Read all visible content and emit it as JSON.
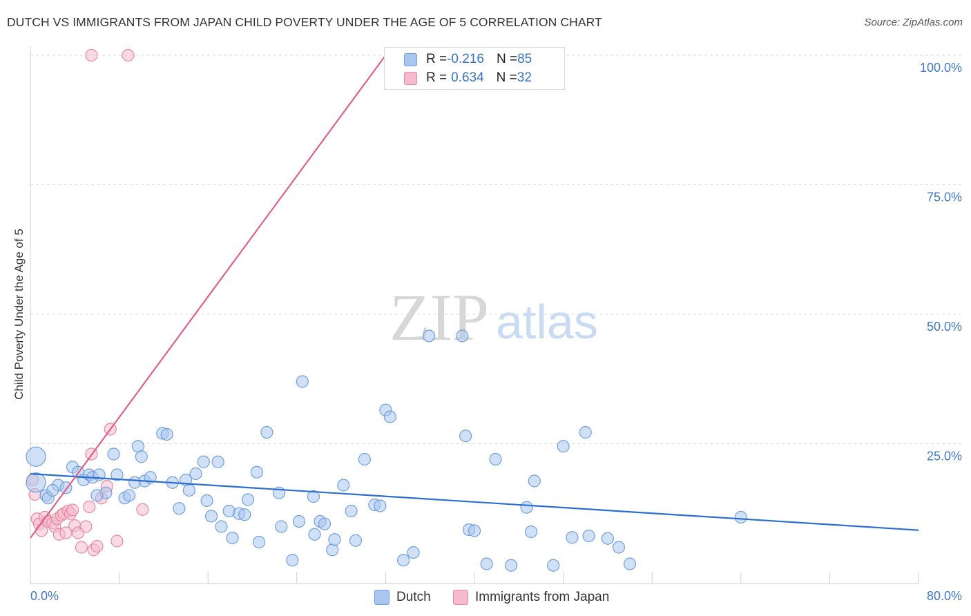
{
  "title": "DUTCH VS IMMIGRANTS FROM JAPAN CHILD POVERTY UNDER THE AGE OF 5 CORRELATION CHART",
  "source": "Source: ZipAtlas.com",
  "watermark": {
    "zip": "ZIP",
    "atlas": "atlas"
  },
  "legend_top": {
    "rows": [
      {
        "r_label": "R = ",
        "r_value": "-0.216",
        "n_label": "N = ",
        "n_value": "85"
      },
      {
        "r_label": "R = ",
        "r_value": "0.634",
        "n_label": "N = ",
        "n_value": "32"
      }
    ]
  },
  "legend_bottom": {
    "dutch": "Dutch",
    "japan": "Immigrants from Japan"
  },
  "colors": {
    "dutch_fill": "#a9c6ee",
    "dutch_stroke": "#6f9fdc",
    "dutch_line": "#2a6fcf",
    "japan_fill": "#f6bccd",
    "japan_stroke": "#e8879f",
    "japan_line": "#e0608a",
    "tick_label": "#3f78c9"
  },
  "chart_data": {
    "type": "scatter",
    "title": "DUTCH VS IMMIGRANTS FROM JAPAN CHILD POVERTY UNDER THE AGE OF 5 CORRELATION CHART",
    "xlabel": "",
    "ylabel": "Child Poverty Under the Age of 5",
    "xlim": [
      0,
      80
    ],
    "ylim": [
      0,
      100
    ],
    "x_tick_labels": [
      "0.0%",
      "80.0%"
    ],
    "y_ticks": [
      25,
      50,
      75,
      100
    ],
    "y_tick_labels": [
      "25.0%",
      "50.0%",
      "75.0%",
      "100.0%"
    ],
    "x_minor_ticks": [
      0,
      8,
      16,
      24,
      32,
      40,
      48,
      56,
      64,
      72,
      80
    ],
    "series": [
      {
        "name": "Dutch",
        "R": -0.216,
        "N": 85,
        "trend": {
          "x": [
            0,
            80
          ],
          "y": [
            19.2,
            8.3
          ]
        },
        "points": [
          [
            0.5,
            22.5
          ],
          [
            0.5,
            17.5
          ],
          [
            1.4,
            15.0
          ],
          [
            1.6,
            14.5
          ],
          [
            2.5,
            17.0
          ],
          [
            3.2,
            16.5
          ],
          [
            3.8,
            20.5
          ],
          [
            4.3,
            19.5
          ],
          [
            4.8,
            18.0
          ],
          [
            5.3,
            19.0
          ],
          [
            5.6,
            18.5
          ],
          [
            6.2,
            19.0
          ],
          [
            6.8,
            15.5
          ],
          [
            7.5,
            23.0
          ],
          [
            7.8,
            19.0
          ],
          [
            8.5,
            14.5
          ],
          [
            8.9,
            15.0
          ],
          [
            9.4,
            17.5
          ],
          [
            9.7,
            24.5
          ],
          [
            10.0,
            22.5
          ],
          [
            10.3,
            17.8
          ],
          [
            10.8,
            18.5
          ],
          [
            11.9,
            27.0
          ],
          [
            12.3,
            26.8
          ],
          [
            12.8,
            17.5
          ],
          [
            13.4,
            12.5
          ],
          [
            14.0,
            18.0
          ],
          [
            14.3,
            16.0
          ],
          [
            14.9,
            19.2
          ],
          [
            15.6,
            21.5
          ],
          [
            15.9,
            14.0
          ],
          [
            16.3,
            11.0
          ],
          [
            16.9,
            21.5
          ],
          [
            17.2,
            9.0
          ],
          [
            17.9,
            12.0
          ],
          [
            18.2,
            6.8
          ],
          [
            18.8,
            11.5
          ],
          [
            19.3,
            11.3
          ],
          [
            19.6,
            14.2
          ],
          [
            20.4,
            19.5
          ],
          [
            20.6,
            6.0
          ],
          [
            21.3,
            27.2
          ],
          [
            22.4,
            15.5
          ],
          [
            22.6,
            9.0
          ],
          [
            23.6,
            2.5
          ],
          [
            24.2,
            10.0
          ],
          [
            24.5,
            37.0
          ],
          [
            25.5,
            14.8
          ],
          [
            25.6,
            7.5
          ],
          [
            26.1,
            10.0
          ],
          [
            26.5,
            9.5
          ],
          [
            27.2,
            4.5
          ],
          [
            27.4,
            6.5
          ],
          [
            28.2,
            17.0
          ],
          [
            28.9,
            12.0
          ],
          [
            29.3,
            6.3
          ],
          [
            30.1,
            22.0
          ],
          [
            31.0,
            13.2
          ],
          [
            31.5,
            13.0
          ],
          [
            32.0,
            31.5
          ],
          [
            32.4,
            30.2
          ],
          [
            33.6,
            2.5
          ],
          [
            34.5,
            4.0
          ],
          [
            35.9,
            45.8
          ],
          [
            38.9,
            45.8
          ],
          [
            39.2,
            26.5
          ],
          [
            39.5,
            8.4
          ],
          [
            40.0,
            8.2
          ],
          [
            41.1,
            1.8
          ],
          [
            41.9,
            22.0
          ],
          [
            43.3,
            1.5
          ],
          [
            44.7,
            12.7
          ],
          [
            45.1,
            8.0
          ],
          [
            45.4,
            17.8
          ],
          [
            47.1,
            1.5
          ],
          [
            48.0,
            24.5
          ],
          [
            48.8,
            6.9
          ],
          [
            50.0,
            27.2
          ],
          [
            50.3,
            7.2
          ],
          [
            52.0,
            6.7
          ],
          [
            53.0,
            5.0
          ],
          [
            54.0,
            1.8
          ],
          [
            64.0,
            10.8
          ],
          [
            2.0,
            16.0
          ],
          [
            6.0,
            15.0
          ]
        ]
      },
      {
        "name": "Immigrants from Japan",
        "R": 0.634,
        "N": 32,
        "trend": {
          "x": [
            0,
            32
          ],
          "y": [
            6.8,
            100
          ]
        },
        "points": [
          [
            0.2,
            18.0
          ],
          [
            0.4,
            15.2
          ],
          [
            0.6,
            10.5
          ],
          [
            0.8,
            9.5
          ],
          [
            1.0,
            8.2
          ],
          [
            1.3,
            10.8
          ],
          [
            1.6,
            10.0
          ],
          [
            2.0,
            9.7
          ],
          [
            2.2,
            9.0
          ],
          [
            2.4,
            10.5
          ],
          [
            2.6,
            7.5
          ],
          [
            2.8,
            11.2
          ],
          [
            3.0,
            11.5
          ],
          [
            3.2,
            7.8
          ],
          [
            3.4,
            12.0
          ],
          [
            3.6,
            11.5
          ],
          [
            3.8,
            12.2
          ],
          [
            4.0,
            9.2
          ],
          [
            4.3,
            7.8
          ],
          [
            4.6,
            5.0
          ],
          [
            5.0,
            9.0
          ],
          [
            5.3,
            12.8
          ],
          [
            5.5,
            23.0
          ],
          [
            5.7,
            4.5
          ],
          [
            6.0,
            5.2
          ],
          [
            6.4,
            14.5
          ],
          [
            6.9,
            16.8
          ],
          [
            7.2,
            27.8
          ],
          [
            7.8,
            6.2
          ],
          [
            10.1,
            12.3
          ],
          [
            5.5,
            100.0
          ],
          [
            8.8,
            100.0
          ]
        ]
      }
    ]
  }
}
